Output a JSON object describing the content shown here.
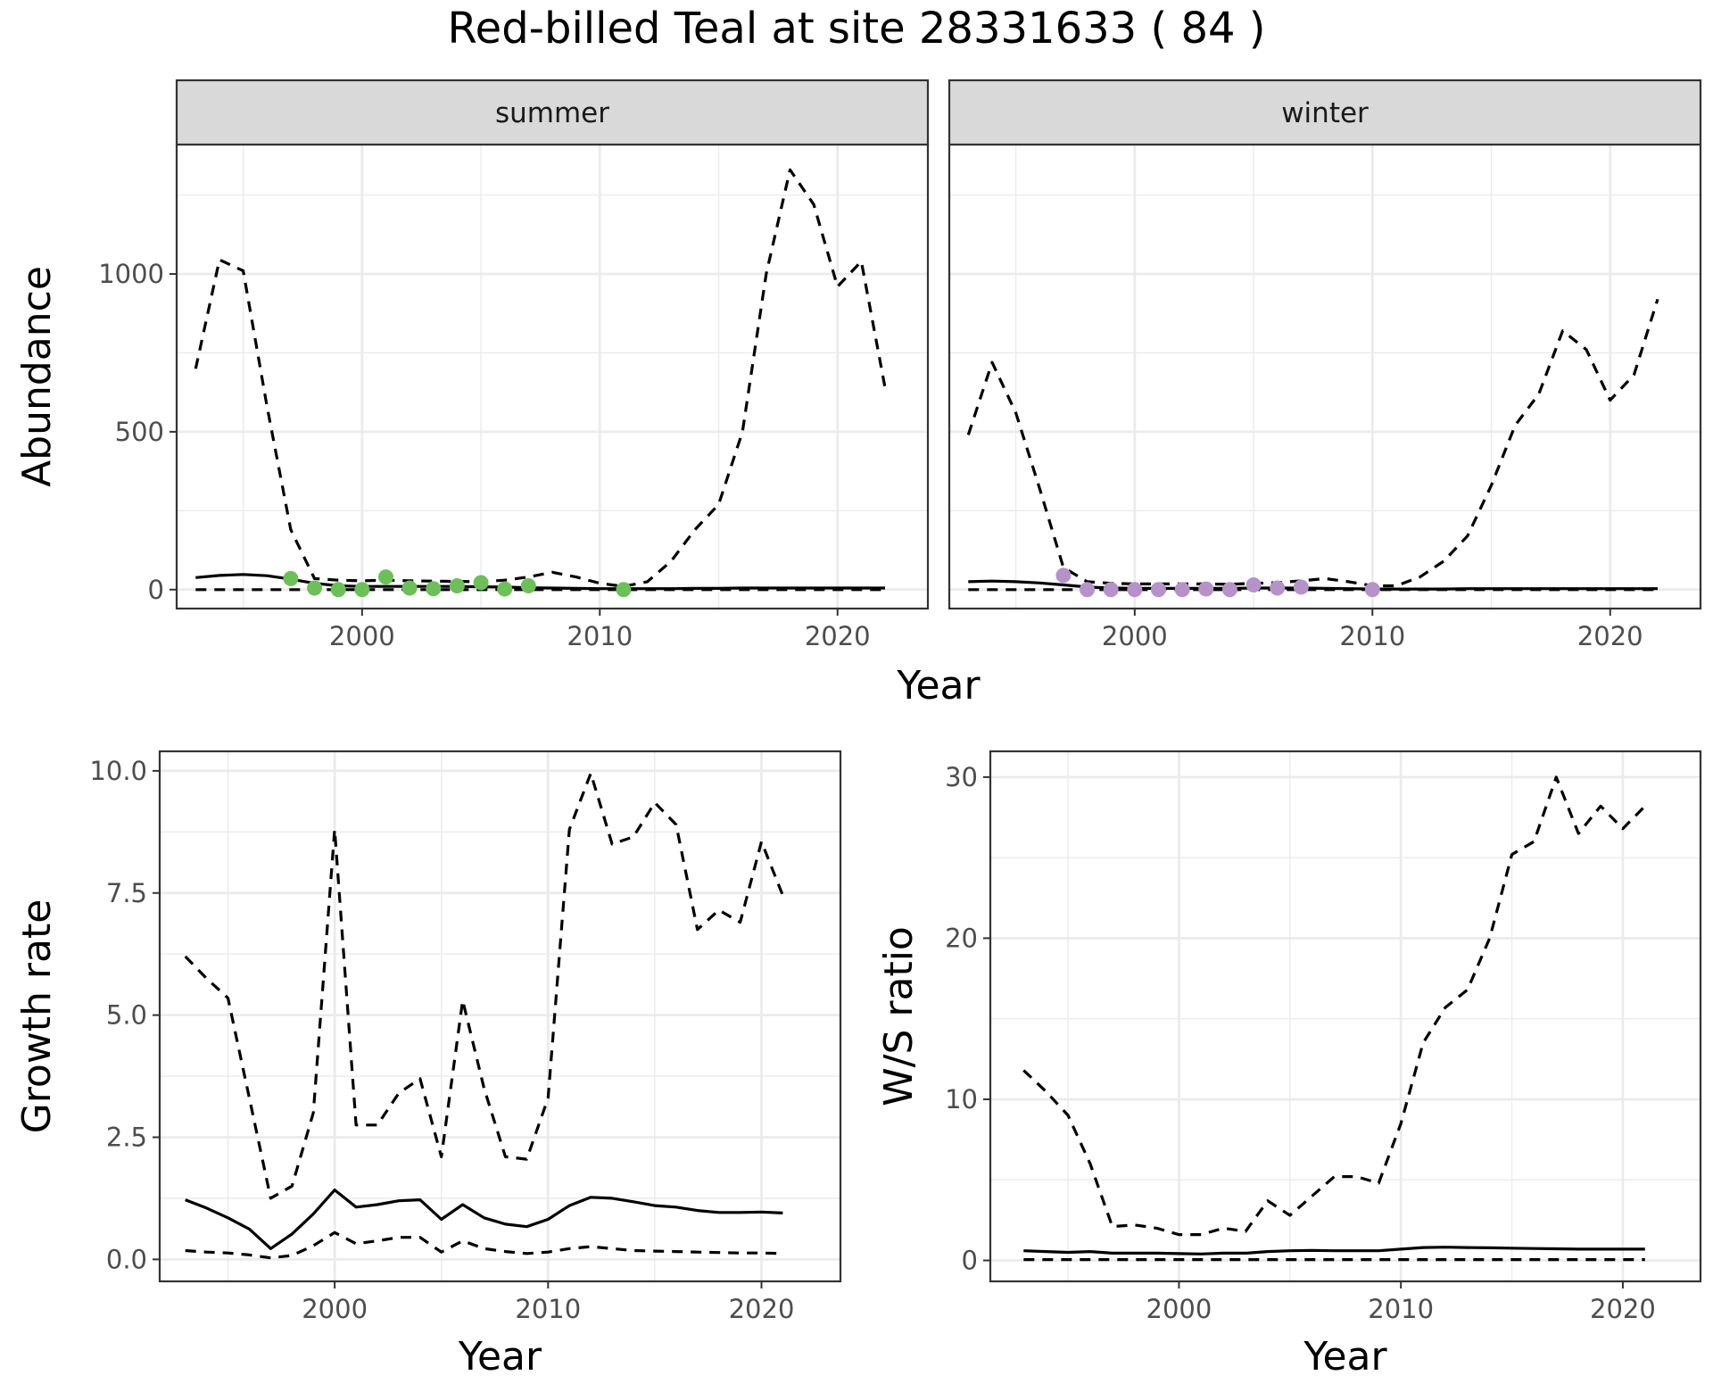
{
  "title": "Red-billed Teal at site 28331633 ( 84 )",
  "colors": {
    "summer_points": "#6dbf5a",
    "winter_points": "#b593c8",
    "lines": "#000000",
    "strip_bg": "#d9d9d9",
    "grid": "#ebebeb"
  },
  "chart_data": [
    {
      "type": "line",
      "panel": "summer",
      "strip_label": "summer",
      "xlabel": "Year",
      "ylabel": "Abundance",
      "xlim": [
        1992.2,
        2023.8
      ],
      "ylim": [
        -60,
        1410
      ],
      "x_ticks": [
        2000,
        2010,
        2020
      ],
      "y_ticks": [
        0,
        500,
        1000
      ],
      "grid": true,
      "lines": [
        {
          "style": "solid",
          "x": [
            1993,
            1994,
            1995,
            1996,
            1997,
            1998,
            1999,
            2000,
            2001,
            2002,
            2003,
            2004,
            2005,
            2006,
            2007,
            2008,
            2009,
            2010,
            2011,
            2012,
            2013,
            2014,
            2015,
            2016,
            2017,
            2018,
            2019,
            2020,
            2021,
            2022
          ],
          "y": [
            38,
            45,
            48,
            44,
            33,
            20,
            12,
            10,
            10,
            10,
            10,
            10,
            9,
            8,
            6,
            5,
            4,
            3,
            3,
            3,
            3,
            4,
            4,
            5,
            5,
            5,
            5,
            5,
            5,
            5
          ]
        },
        {
          "style": "dashed",
          "x": [
            1993,
            1994,
            1995,
            1996,
            1997,
            1998,
            1999,
            2000,
            2001,
            2002,
            2003,
            2004,
            2005,
            2006,
            2007,
            2008,
            2009,
            2010,
            2011,
            2012,
            2013,
            2014,
            2015,
            2016,
            2017,
            2018,
            2019,
            2020,
            2021,
            2022
          ],
          "y": [
            700,
            1045,
            1010,
            580,
            190,
            35,
            30,
            28,
            30,
            28,
            27,
            26,
            25,
            30,
            40,
            55,
            40,
            20,
            10,
            25,
            90,
            190,
            270,
            500,
            1000,
            1330,
            1220,
            960,
            1040,
            640
          ]
        },
        {
          "style": "dashed",
          "x": [
            1993,
            1994,
            1995,
            1996,
            1997,
            1998,
            1999,
            2000,
            2001,
            2002,
            2003,
            2004,
            2005,
            2006,
            2007,
            2008,
            2009,
            2010,
            2011,
            2012,
            2013,
            2014,
            2015,
            2016,
            2017,
            2018,
            2019,
            2020,
            2021,
            2022
          ],
          "y": [
            0,
            0,
            0,
            0,
            0,
            0,
            0,
            0,
            0,
            0,
            0,
            0,
            0,
            0,
            0,
            0,
            0,
            0,
            0,
            0,
            0,
            0,
            0,
            0,
            0,
            0,
            0,
            0,
            0,
            0
          ]
        }
      ],
      "points": {
        "x": [
          1997,
          1998,
          1999,
          2000,
          2001,
          2002,
          2003,
          2004,
          2005,
          2006,
          2007,
          2011
        ],
        "y": [
          35,
          5,
          0,
          0,
          40,
          5,
          3,
          12,
          22,
          2,
          12,
          0
        ]
      }
    },
    {
      "type": "line",
      "panel": "winter",
      "strip_label": "winter",
      "xlabel": "Year",
      "ylabel": "Abundance",
      "xlim": [
        1992.2,
        2023.8
      ],
      "ylim": [
        -60,
        1410
      ],
      "x_ticks": [
        2000,
        2010,
        2020
      ],
      "y_ticks": [
        0,
        500,
        1000
      ],
      "grid": true,
      "lines": [
        {
          "style": "solid",
          "x": [
            1993,
            1994,
            1995,
            1996,
            1997,
            1998,
            1999,
            2000,
            2001,
            2002,
            2003,
            2004,
            2005,
            2006,
            2007,
            2008,
            2009,
            2010,
            2011,
            2012,
            2013,
            2014,
            2015,
            2016,
            2017,
            2018,
            2019,
            2020,
            2021,
            2022
          ],
          "y": [
            25,
            27,
            25,
            21,
            15,
            8,
            5,
            4,
            4,
            4,
            4,
            4,
            5,
            5,
            5,
            4,
            3,
            2,
            2,
            2,
            2,
            3,
            3,
            3,
            3,
            3,
            3,
            3,
            3,
            3
          ]
        },
        {
          "style": "dashed",
          "x": [
            1993,
            1994,
            1995,
            1996,
            1997,
            1998,
            1999,
            2000,
            2001,
            2002,
            2003,
            2004,
            2005,
            2006,
            2007,
            2008,
            2009,
            2010,
            2011,
            2012,
            2013,
            2014,
            2015,
            2016,
            2017,
            2018,
            2019,
            2020,
            2021,
            2022
          ],
          "y": [
            490,
            720,
            560,
            320,
            70,
            25,
            20,
            18,
            18,
            18,
            18,
            17,
            20,
            22,
            28,
            35,
            25,
            12,
            12,
            40,
            90,
            170,
            330,
            520,
            620,
            820,
            760,
            600,
            680,
            920
          ]
        },
        {
          "style": "dashed",
          "x": [
            1993,
            1994,
            1995,
            1996,
            1997,
            1998,
            1999,
            2000,
            2001,
            2002,
            2003,
            2004,
            2005,
            2006,
            2007,
            2008,
            2009,
            2010,
            2011,
            2012,
            2013,
            2014,
            2015,
            2016,
            2017,
            2018,
            2019,
            2020,
            2021,
            2022
          ],
          "y": [
            0,
            0,
            0,
            0,
            0,
            0,
            0,
            0,
            0,
            0,
            0,
            0,
            0,
            0,
            0,
            0,
            0,
            0,
            0,
            0,
            0,
            0,
            0,
            0,
            0,
            0,
            0,
            0,
            0,
            0
          ]
        }
      ],
      "points": {
        "x": [
          1997,
          1998,
          1999,
          2000,
          2001,
          2002,
          2003,
          2004,
          2005,
          2006,
          2007,
          2010
        ],
        "y": [
          45,
          0,
          0,
          0,
          0,
          0,
          2,
          0,
          15,
          5,
          8,
          0
        ]
      }
    },
    {
      "type": "line",
      "panel": "growth",
      "xlabel": "Year",
      "ylabel": "Growth rate",
      "xlim": [
        1991.8,
        2023.7
      ],
      "ylim": [
        -0.45,
        10.4
      ],
      "x_ticks": [
        2000,
        2010,
        2020
      ],
      "y_ticks": [
        0.0,
        2.5,
        5.0,
        7.5,
        10.0
      ],
      "y_tick_labels": [
        "0.0",
        "2.5",
        "5.0",
        "7.5",
        "10.0"
      ],
      "grid": true,
      "lines": [
        {
          "style": "solid",
          "x": [
            1993,
            1994,
            1995,
            1996,
            1997,
            1998,
            1999,
            2000,
            2001,
            2002,
            2003,
            2004,
            2005,
            2006,
            2007,
            2008,
            2009,
            2010,
            2011,
            2012,
            2013,
            2014,
            2015,
            2016,
            2017,
            2018,
            2019,
            2020,
            2021
          ],
          "y": [
            1.22,
            1.05,
            0.85,
            0.62,
            0.22,
            0.52,
            0.93,
            1.42,
            1.07,
            1.12,
            1.2,
            1.22,
            0.82,
            1.12,
            0.85,
            0.72,
            0.67,
            0.82,
            1.1,
            1.27,
            1.25,
            1.18,
            1.1,
            1.07,
            1.0,
            0.96,
            0.96,
            0.97,
            0.95
          ]
        },
        {
          "style": "dashed",
          "x": [
            1993,
            1994,
            1995,
            1996,
            1997,
            1998,
            1999,
            2000,
            2001,
            2002,
            2003,
            2004,
            2005,
            2006,
            2007,
            2008,
            2009,
            2010,
            2011,
            2012,
            2013,
            2014,
            2015,
            2016,
            2017,
            2018,
            2019,
            2020,
            2021
          ],
          "y": [
            6.2,
            5.75,
            5.35,
            3.3,
            1.25,
            1.5,
            3.0,
            8.8,
            2.75,
            2.75,
            3.4,
            3.7,
            2.1,
            5.3,
            3.5,
            2.1,
            2.05,
            3.3,
            8.8,
            9.95,
            8.5,
            8.65,
            9.35,
            8.9,
            6.75,
            7.15,
            6.9,
            8.55,
            7.45
          ]
        },
        {
          "style": "dashed",
          "x": [
            1993,
            1994,
            1995,
            1996,
            1997,
            1998,
            1999,
            2000,
            2001,
            2002,
            2003,
            2004,
            2005,
            2006,
            2007,
            2008,
            2009,
            2010,
            2011,
            2012,
            2013,
            2014,
            2015,
            2016,
            2017,
            2018,
            2019,
            2020,
            2021
          ],
          "y": [
            0.18,
            0.15,
            0.13,
            0.09,
            0.03,
            0.08,
            0.28,
            0.55,
            0.32,
            0.38,
            0.45,
            0.45,
            0.15,
            0.38,
            0.22,
            0.16,
            0.12,
            0.15,
            0.22,
            0.26,
            0.22,
            0.18,
            0.17,
            0.16,
            0.15,
            0.14,
            0.13,
            0.13,
            0.12
          ]
        }
      ]
    },
    {
      "type": "line",
      "panel": "ratio",
      "xlabel": "Year",
      "ylabel": "W/S ratio",
      "xlim": [
        1991.5,
        2023.5
      ],
      "ylim": [
        -1.3,
        31.6
      ],
      "x_ticks": [
        2000,
        2010,
        2020
      ],
      "y_ticks": [
        0,
        10,
        20,
        30
      ],
      "grid": true,
      "lines": [
        {
          "style": "solid",
          "x": [
            1993,
            1994,
            1995,
            1996,
            1997,
            1998,
            1999,
            2000,
            2001,
            2002,
            2003,
            2004,
            2005,
            2006,
            2007,
            2008,
            2009,
            2010,
            2011,
            2012,
            2013,
            2014,
            2015,
            2016,
            2017,
            2018,
            2019,
            2020,
            2021
          ],
          "y": [
            0.6,
            0.55,
            0.5,
            0.55,
            0.45,
            0.45,
            0.45,
            0.42,
            0.4,
            0.45,
            0.45,
            0.55,
            0.6,
            0.62,
            0.6,
            0.6,
            0.6,
            0.7,
            0.8,
            0.82,
            0.8,
            0.78,
            0.76,
            0.74,
            0.72,
            0.7,
            0.7,
            0.7,
            0.7
          ]
        },
        {
          "style": "dashed",
          "x": [
            1993,
            1994,
            1995,
            1996,
            1997,
            1998,
            1999,
            2000,
            2001,
            2002,
            2003,
            2004,
            2005,
            2006,
            2007,
            2008,
            2009,
            2010,
            2011,
            2012,
            2013,
            2014,
            2015,
            2016,
            2017,
            2018,
            2019,
            2020,
            2021
          ],
          "y": [
            11.8,
            10.5,
            9.0,
            6.0,
            2.1,
            2.2,
            2.0,
            1.6,
            1.6,
            2.0,
            1.8,
            3.7,
            2.8,
            4.0,
            5.2,
            5.2,
            4.8,
            8.5,
            13.5,
            15.7,
            16.8,
            20.0,
            25.2,
            26.0,
            30.0,
            26.5,
            28.2,
            26.8,
            28.2
          ]
        },
        {
          "style": "dashed",
          "x": [
            1993,
            1994,
            1995,
            1996,
            1997,
            1998,
            1999,
            2000,
            2001,
            2002,
            2003,
            2004,
            2005,
            2006,
            2007,
            2008,
            2009,
            2010,
            2011,
            2012,
            2013,
            2014,
            2015,
            2016,
            2017,
            2018,
            2019,
            2020,
            2021
          ],
          "y": [
            0.05,
            0.05,
            0.05,
            0.05,
            0.05,
            0.05,
            0.05,
            0.05,
            0.05,
            0.05,
            0.05,
            0.05,
            0.05,
            0.05,
            0.05,
            0.05,
            0.05,
            0.05,
            0.05,
            0.05,
            0.05,
            0.05,
            0.05,
            0.05,
            0.05,
            0.05,
            0.05,
            0.05,
            0.05
          ]
        }
      ]
    }
  ]
}
